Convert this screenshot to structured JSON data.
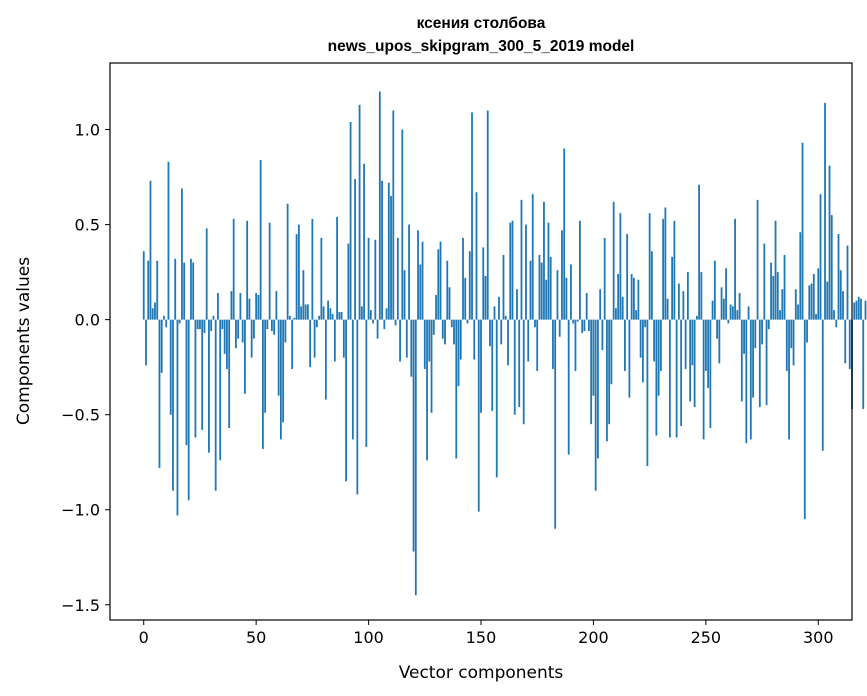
{
  "chart_data": {
    "type": "bar",
    "title_line1": "ксения столбова",
    "title_line2": "news_upos_skipgram_300_5_2019 model",
    "xlabel": "Vector components",
    "ylabel": "Components values",
    "xlim": [
      -15,
      315
    ],
    "ylim": [
      -1.58,
      1.35
    ],
    "xticks": [
      0,
      50,
      100,
      150,
      200,
      250,
      300
    ],
    "xtick_labels": [
      "0",
      "50",
      "100",
      "150",
      "200",
      "250",
      "300"
    ],
    "yticks": [
      -1.5,
      -1.0,
      -0.5,
      0.0,
      0.5,
      1.0
    ],
    "ytick_labels": [
      "−1.5",
      "−1.0",
      "−0.5",
      "0.0",
      "0.5",
      "1.0"
    ],
    "bar_color": "#1f77b4",
    "grid": false,
    "values": [
      0.36,
      -0.24,
      0.31,
      0.73,
      0.06,
      0.09,
      0.31,
      -0.78,
      -0.28,
      0.02,
      -0.04,
      0.83,
      -0.5,
      -0.9,
      0.32,
      -1.03,
      -0.02,
      0.69,
      0.3,
      -0.66,
      -0.95,
      0.32,
      0.3,
      -0.62,
      -0.05,
      -0.05,
      -0.58,
      -0.07,
      0.48,
      -0.7,
      -0.06,
      0.02,
      -0.9,
      0.14,
      -0.74,
      -0.05,
      -0.18,
      -0.26,
      -0.57,
      0.15,
      0.53,
      -0.15,
      -0.1,
      0.14,
      -0.12,
      -0.39,
      0.52,
      0.11,
      -0.2,
      -0.1,
      0.14,
      0.13,
      0.84,
      -0.68,
      -0.49,
      -0.05,
      0.51,
      -0.06,
      -0.08,
      0.15,
      -0.4,
      -0.63,
      -0.54,
      -0.12,
      0.61,
      0.02,
      -0.26,
      0.01,
      0.45,
      0.5,
      0.07,
      0.26,
      0.08,
      0.08,
      -0.25,
      0.53,
      -0.2,
      -0.04,
      0.02,
      0.43,
      0.07,
      -0.42,
      0.1,
      0.06,
      0.03,
      -0.22,
      0.54,
      0.04,
      0.04,
      -0.2,
      -0.85,
      0.4,
      1.04,
      -0.63,
      0.74,
      -0.92,
      1.13,
      0.07,
      0.82,
      -0.67,
      0.43,
      0.05,
      -0.02,
      0.42,
      -0.1,
      1.2,
      0.73,
      -0.05,
      0.06,
      0.72,
      0.65,
      1.1,
      -0.03,
      0.43,
      -0.22,
      1.0,
      0.26,
      -0.2,
      0.5,
      -0.3,
      -1.22,
      -1.45,
      0.47,
      0.29,
      0.41,
      -0.26,
      -0.74,
      -0.22,
      -0.49,
      -0.08,
      0.13,
      0.37,
      0.41,
      -0.1,
      -0.13,
      0.31,
      0.17,
      -0.04,
      -0.13,
      -0.73,
      -0.35,
      -0.21,
      0.43,
      0.22,
      -0.02,
      0.36,
      1.09,
      -0.21,
      0.67,
      -1.01,
      -0.49,
      0.38,
      0.23,
      1.1,
      -0.14,
      -0.48,
      0.07,
      -0.83,
      0.12,
      -0.13,
      0.34,
      0.02,
      -0.24,
      0.51,
      0.52,
      -0.5,
      0.16,
      -0.46,
      0.63,
      -0.55,
      0.5,
      -0.22,
      0.31,
      0.66,
      -0.04,
      -0.27,
      0.34,
      0.3,
      0.62,
      0.21,
      0.51,
      0.33,
      -0.26,
      -1.1,
      0.26,
      -0.09,
      0.47,
      0.9,
      0.22,
      -0.71,
      0.29,
      -0.02,
      -0.27,
      -0.01,
      0.52,
      -0.07,
      -0.06,
      0.14,
      -0.06,
      -0.55,
      -0.4,
      -0.9,
      -0.73,
      0.16,
      -0.16,
      0.43,
      -0.64,
      -0.55,
      -0.34,
      0.62,
      0.06,
      0.24,
      0.56,
      0.12,
      -0.27,
      0.45,
      -0.41,
      0.24,
      0.22,
      0.05,
      0.21,
      -0.2,
      -0.33,
      -0.04,
      -0.77,
      0.56,
      0.36,
      -0.22,
      -0.61,
      -0.4,
      -0.27,
      0.53,
      0.59,
      0.11,
      -0.62,
      0.33,
      0.52,
      -0.62,
      0.19,
      -0.56,
      0.15,
      -0.26,
      0.25,
      -0.43,
      -0.24,
      -0.46,
      0.02,
      0.71,
      0.25,
      -0.63,
      -0.27,
      -0.36,
      -0.57,
      0.1,
      0.31,
      -0.1,
      -0.23,
      0.17,
      0.11,
      0.27,
      -0.02,
      0.08,
      0.07,
      0.53,
      0.05,
      0.14,
      -0.43,
      -0.18,
      -0.65,
      0.07,
      -0.63,
      -0.41,
      -0.15,
      0.63,
      -0.46,
      -0.13,
      0.4,
      -0.45,
      -0.05,
      0.3,
      0.23,
      0.52,
      0.25,
      0.05,
      0.16,
      0.34,
      -0.27,
      -0.63,
      -0.15,
      -0.24,
      0.16,
      0.08,
      0.46,
      0.93,
      -1.05,
      -0.12,
      0.18,
      0.19,
      0.24,
      0.03,
      0.27,
      0.66,
      -0.69,
      1.14,
      0.2,
      0.81,
      0.55,
      0.05,
      -0.04,
      0.45,
      0.26,
      0.15,
      -0.23,
      0.39,
      -0.26,
      -0.47,
      0.09,
      0.1,
      0.12,
      0.11,
      -0.47,
      0.1
    ]
  }
}
